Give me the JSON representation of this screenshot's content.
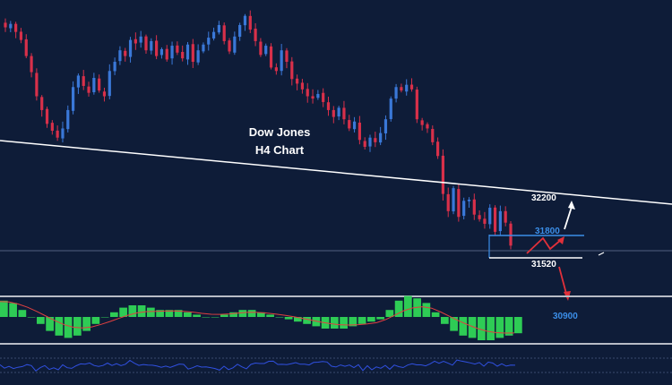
{
  "chart_data": {
    "type": "candlestick",
    "title_line1": "Dow Jones",
    "title_line2": "H4 Chart",
    "colors": {
      "background": "#0e1c38",
      "bull": "#3a78d8",
      "bear": "#d8304a",
      "trendline": "#ffffff",
      "level_blue": "#3b8ee8",
      "level_white": "#ffffff",
      "separator": "#b8bcc6",
      "macd_hist": "#2ecc55",
      "macd_signal": "#e04040",
      "rsi_line": "#3050e0"
    },
    "price_scale": {
      "ymin": 31400,
      "ymax": 33660
    },
    "candles_close": [
      33500,
      33530,
      33460,
      33390,
      33250,
      33110,
      32900,
      32780,
      32660,
      32600,
      32540,
      32620,
      32780,
      32980,
      33080,
      32990,
      32930,
      33060,
      32950,
      32900,
      33120,
      33200,
      33300,
      33250,
      33390,
      33360,
      33420,
      33300,
      33380,
      33250,
      33310,
      33220,
      33340,
      33280,
      33230,
      33350,
      33200,
      33300,
      33350,
      33410,
      33460,
      33520,
      33380,
      33290,
      33420,
      33520,
      33600,
      33480,
      33380,
      33260,
      33340,
      33150,
      33120,
      33300,
      33200,
      33050,
      33010,
      32960,
      32900,
      32880,
      32920,
      32850,
      32780,
      32720,
      32800,
      32700,
      32620,
      32680,
      32520,
      32460,
      32540,
      32500,
      32580,
      32700,
      32880,
      32980,
      32950,
      33000,
      32960,
      32700,
      32650,
      32620,
      32500,
      32380,
      32050,
      31900,
      32100,
      31850,
      31990,
      32000,
      31870,
      31830,
      31790,
      31930,
      31720,
      31900,
      31800,
      31600
    ],
    "levels": [
      {
        "name": "level-31520",
        "value": 31520,
        "label": "31520",
        "color": "white"
      },
      {
        "name": "level-31800",
        "value": 31800,
        "label": "31800",
        "color": "blue"
      },
      {
        "name": "level-32200",
        "value": 32200,
        "label": "32200",
        "color": "white"
      },
      {
        "name": "level-30900",
        "value": 30900,
        "label": "30900",
        "color": "blue"
      }
    ],
    "macd_histogram": [
      0.7,
      0.6,
      0.3,
      0.0,
      -0.3,
      -0.6,
      -0.8,
      -0.9,
      -0.8,
      -0.6,
      -0.3,
      0.0,
      0.2,
      0.4,
      0.5,
      0.5,
      0.4,
      0.3,
      0.3,
      0.3,
      0.2,
      0.1,
      0.0,
      0.0,
      0.1,
      0.2,
      0.3,
      0.3,
      0.2,
      0.1,
      0.0,
      -0.1,
      -0.2,
      -0.3,
      -0.4,
      -0.5,
      -0.5,
      -0.5,
      -0.4,
      -0.3,
      -0.2,
      -0.1,
      0.3,
      0.7,
      0.9,
      0.8,
      0.6,
      0.2,
      -0.3,
      -0.6,
      -0.8,
      -0.9,
      -1.0,
      -1.0,
      -0.9,
      -0.8,
      -0.7
    ]
  }
}
